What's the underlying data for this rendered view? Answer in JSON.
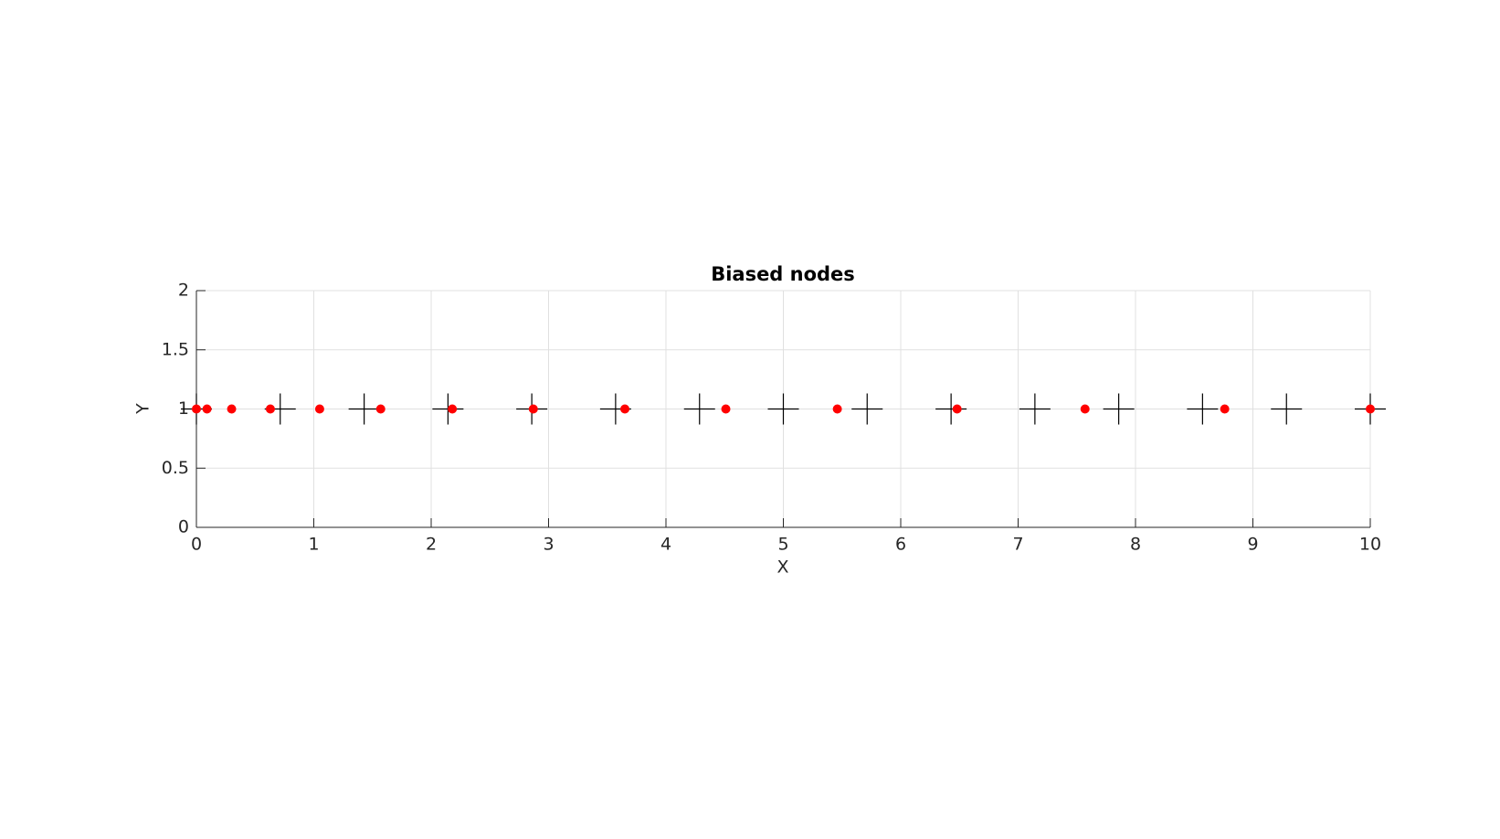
{
  "chart_data": {
    "type": "scatter",
    "title": "Biased nodes",
    "xlabel": "X",
    "ylabel": "Y",
    "xlim": [
      0,
      10
    ],
    "ylim": [
      0,
      2
    ],
    "xticks": [
      0,
      1,
      2,
      3,
      4,
      5,
      6,
      7,
      8,
      9,
      10
    ],
    "yticks": [
      0,
      0.5,
      1,
      1.5,
      2
    ],
    "grid": true,
    "series": [
      {
        "marker": "+",
        "color": "#000000",
        "x": [
          0,
          0.714,
          1.429,
          2.143,
          2.857,
          3.571,
          4.286,
          5,
          5.714,
          6.429,
          7.143,
          7.857,
          8.571,
          9.286,
          10
        ],
        "values": [
          1,
          1,
          1,
          1,
          1,
          1,
          1,
          1,
          1,
          1,
          1,
          1,
          1,
          1,
          1
        ]
      },
      {
        "marker": "o",
        "color": "#ff0000",
        "x": [
          0,
          0.09,
          0.3,
          0.63,
          1.05,
          1.57,
          2.18,
          2.87,
          3.65,
          4.51,
          5.46,
          6.48,
          7.57,
          8.76,
          10
        ],
        "values": [
          1,
          1,
          1,
          1,
          1,
          1,
          1,
          1,
          1,
          1,
          1,
          1,
          1,
          1,
          1
        ]
      }
    ]
  }
}
